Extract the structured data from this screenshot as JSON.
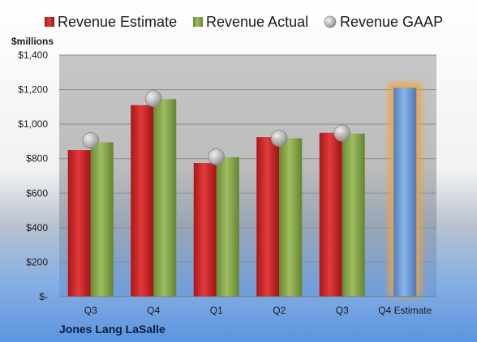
{
  "chart_data": {
    "type": "bar",
    "company": "Jones Lang LaSalle",
    "ylabel": "$millions",
    "ylim": [
      0,
      1400
    ],
    "yticks": [
      0,
      200,
      400,
      600,
      800,
      1000,
      1200,
      1400
    ],
    "ytick_labels": [
      "$-",
      "$200",
      "$400",
      "$600",
      "$800",
      "$1,000",
      "$1,200",
      "$1,400"
    ],
    "categories": [
      "Q3",
      "Q4",
      "Q1",
      "Q2",
      "Q3",
      "Q4 Estimate"
    ],
    "grid": true,
    "legend_position": "top",
    "series": [
      {
        "name": "Revenue Estimate",
        "kind": "bar",
        "color": "#d42a2a",
        "values": [
          850,
          1110,
          775,
          925,
          950,
          null
        ]
      },
      {
        "name": "Revenue Actual",
        "kind": "bar",
        "color": "#8aac4e",
        "values": [
          895,
          1145,
          808,
          918,
          945,
          null
        ]
      },
      {
        "name": "Revenue GAAP",
        "kind": "marker",
        "color": "#b8b8b8",
        "values": [
          905,
          1148,
          810,
          918,
          948,
          null
        ]
      }
    ],
    "estimate": {
      "category_index": 5,
      "value": 1210,
      "color": "#6f9fd8",
      "glow_color": "#f2a23a"
    }
  }
}
